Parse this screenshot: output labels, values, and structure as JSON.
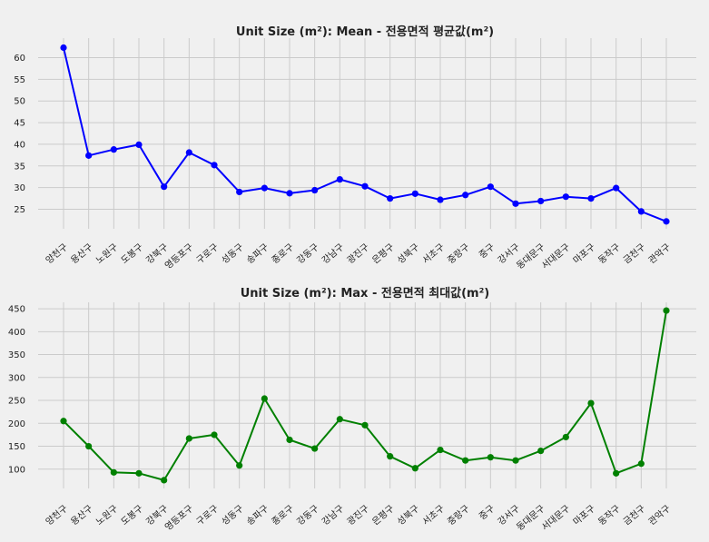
{
  "chart_data": [
    {
      "type": "line",
      "title": "Unit Size (m²): Mean - 전용면적 평균값(m²)",
      "categories": [
        "양천구",
        "용산구",
        "노원구",
        "도봉구",
        "강북구",
        "영등포구",
        "구로구",
        "성동구",
        "송파구",
        "종로구",
        "강동구",
        "강남구",
        "광진구",
        "은평구",
        "성북구",
        "서초구",
        "중랑구",
        "중구",
        "강서구",
        "동대문구",
        "서대문구",
        "마포구",
        "동작구",
        "금천구",
        "관악구"
      ],
      "series": [
        {
          "values": [
            62.3,
            37.4,
            38.8,
            39.9,
            30.2,
            38.1,
            35.2,
            29.0,
            29.9,
            28.7,
            29.4,
            31.9,
            30.3,
            27.5,
            28.6,
            27.2,
            28.3,
            30.2,
            26.3,
            26.9,
            27.9,
            27.5,
            29.9,
            24.5,
            22.2
          ]
        }
      ],
      "yticks": [
        25,
        30,
        35,
        40,
        45,
        50,
        55,
        60
      ],
      "ylim": [
        20.5,
        64.5
      ],
      "grid": true,
      "color": "#0000ff"
    },
    {
      "type": "line",
      "title": "Unit Size (m²): Max - 전용면적 최대값(m²)",
      "categories": [
        "양천구",
        "용산구",
        "노원구",
        "도봉구",
        "강북구",
        "영등포구",
        "구로구",
        "성동구",
        "송파구",
        "종로구",
        "강동구",
        "강남구",
        "광진구",
        "은평구",
        "성북구",
        "서초구",
        "중랑구",
        "중구",
        "강서구",
        "동대문구",
        "서대문구",
        "마포구",
        "동작구",
        "금천구",
        "관악구"
      ],
      "series": [
        {
          "values": [
            205,
            150,
            93,
            91,
            76,
            167,
            175,
            108,
            254,
            164,
            145,
            209,
            196,
            128,
            102,
            142,
            119,
            126,
            119,
            140,
            170,
            244,
            91,
            112,
            446
          ]
        }
      ],
      "yticks": [
        100,
        150,
        200,
        250,
        300,
        350,
        400,
        450
      ],
      "ylim": [
        58,
        464
      ],
      "grid": true,
      "color": "#008000"
    }
  ]
}
